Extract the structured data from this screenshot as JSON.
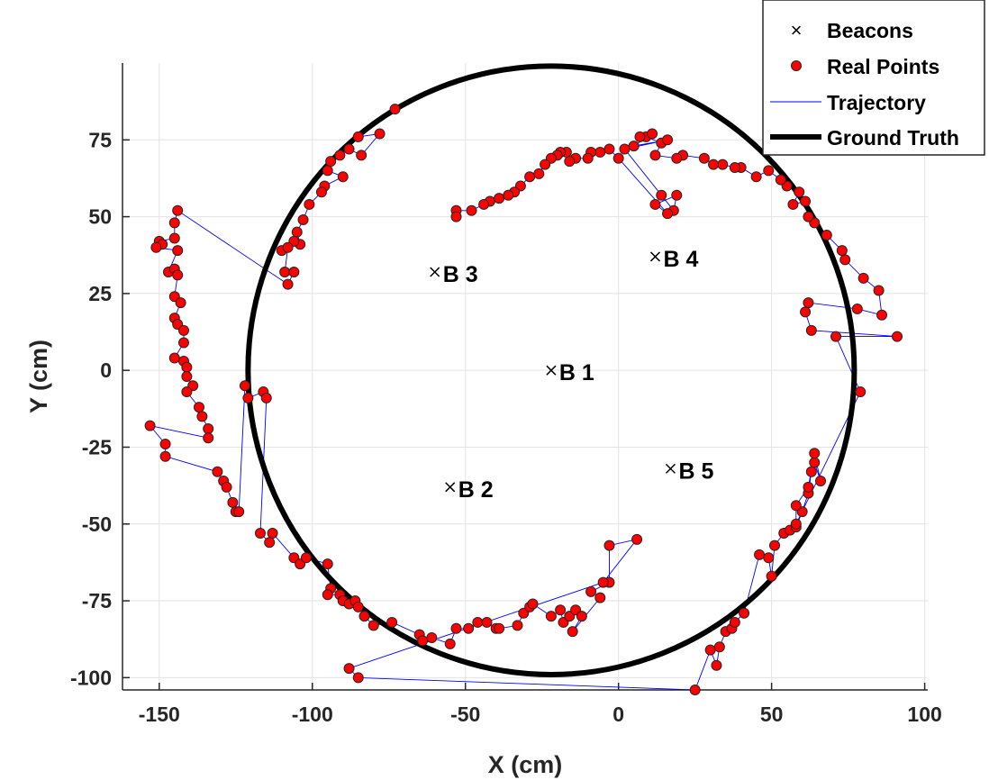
{
  "chart_data": {
    "type": "scatter",
    "xlabel": "X (cm)",
    "ylabel": "Y (cm)",
    "xlim": [
      -162,
      101
    ],
    "ylim": [
      -104,
      100
    ],
    "xticks": [
      -150,
      -100,
      -50,
      0,
      50,
      100
    ],
    "yticks": [
      -100,
      -75,
      -50,
      -25,
      0,
      25,
      50,
      75
    ],
    "grid": true,
    "legend_position": "top-right",
    "legend": [
      {
        "label": "Beacons",
        "marker": "x"
      },
      {
        "label": "Real Points",
        "marker": "circle"
      },
      {
        "label": "Trajectory",
        "marker": "thin-line"
      },
      {
        "label": "Ground Truth",
        "marker": "thick-line"
      }
    ],
    "colors": {
      "beacon": "#000000",
      "real_points_fill": "#ff0000",
      "real_points_edge": "#262626",
      "trajectory": "#0000ff",
      "ground_truth": "#000000",
      "grid": "#e3e3e3"
    },
    "beacons": [
      {
        "name": "B 1",
        "x": -22,
        "y": 0
      },
      {
        "name": "B 2",
        "x": -55,
        "y": -38
      },
      {
        "name": "B 3",
        "x": -60,
        "y": 32
      },
      {
        "name": "B 4",
        "x": 12,
        "y": 37
      },
      {
        "name": "B 5",
        "x": 17,
        "y": -32
      }
    ],
    "ground_truth": {
      "cx": -22,
      "cy": 0,
      "rx": 99,
      "ry": 99
    },
    "real_points": [
      [
        -73,
        85
      ],
      [
        -85,
        76
      ],
      [
        -78,
        77
      ],
      [
        -84,
        70
      ],
      [
        -88,
        72
      ],
      [
        -91,
        70
      ],
      [
        -94,
        68
      ],
      [
        -95,
        65
      ],
      [
        -90,
        63
      ],
      [
        -96,
        60
      ],
      [
        -97,
        58
      ],
      [
        -101,
        54
      ],
      [
        -103,
        49
      ],
      [
        -105,
        45
      ],
      [
        -104,
        41
      ],
      [
        -106,
        42
      ],
      [
        -110,
        39
      ],
      [
        -108,
        40
      ],
      [
        -109,
        32
      ],
      [
        -106,
        32
      ],
      [
        -108,
        28
      ],
      [
        -144,
        52
      ],
      [
        -145,
        48
      ],
      [
        -145,
        43
      ],
      [
        -150,
        42
      ],
      [
        -149,
        41
      ],
      [
        -151,
        40
      ],
      [
        -144,
        39
      ],
      [
        -147,
        32
      ],
      [
        -145,
        33
      ],
      [
        -144,
        31
      ],
      [
        -145,
        24
      ],
      [
        -143,
        22
      ],
      [
        -145,
        17
      ],
      [
        -144,
        15
      ],
      [
        -142,
        13
      ],
      [
        -142,
        9
      ],
      [
        -145,
        4
      ],
      [
        -142,
        3
      ],
      [
        -141,
        1
      ],
      [
        -141,
        -2
      ],
      [
        -139,
        -5
      ],
      [
        -141,
        -7
      ],
      [
        -137,
        -12
      ],
      [
        -136,
        -15
      ],
      [
        -134,
        -19
      ],
      [
        -134,
        -22
      ],
      [
        -153,
        -18
      ],
      [
        -148,
        -24
      ],
      [
        -148,
        -28
      ],
      [
        -131,
        -33
      ],
      [
        -129,
        -36
      ],
      [
        -128,
        -38
      ],
      [
        -126,
        -43
      ],
      [
        -125,
        -46
      ],
      [
        -124,
        -46
      ],
      [
        -122,
        -5
      ],
      [
        -121,
        -9
      ],
      [
        -116,
        -7
      ],
      [
        -115,
        -9
      ],
      [
        -117,
        -53
      ],
      [
        -114,
        -56
      ],
      [
        -113,
        -53
      ],
      [
        -106,
        -61
      ],
      [
        -104,
        -63
      ],
      [
        -102,
        -61
      ],
      [
        -95,
        -63
      ],
      [
        -94,
        -71
      ],
      [
        -95,
        -73
      ],
      [
        -91,
        -73
      ],
      [
        -90,
        -75
      ],
      [
        -88,
        -76
      ],
      [
        -86,
        -75
      ],
      [
        -85,
        -77
      ],
      [
        -83,
        -80
      ],
      [
        -80,
        -83
      ],
      [
        -74,
        -82
      ],
      [
        -65,
        -86
      ],
      [
        -64,
        -88
      ],
      [
        -61,
        -87
      ],
      [
        -55,
        -89
      ],
      [
        -53,
        -84
      ],
      [
        -49,
        -84
      ],
      [
        -46,
        -82
      ],
      [
        -43,
        -82
      ],
      [
        -40,
        -84
      ],
      [
        -39,
        -84
      ],
      [
        -33,
        -83
      ],
      [
        -31,
        -79
      ],
      [
        -29,
        -77
      ],
      [
        -28,
        -76
      ],
      [
        -22,
        -80
      ],
      [
        -19,
        -78
      ],
      [
        -18,
        -82
      ],
      [
        -16,
        -80
      ],
      [
        -14,
        -78
      ],
      [
        -12,
        -80
      ],
      [
        -15,
        -85
      ],
      [
        -6,
        -74
      ],
      [
        -9,
        -72
      ],
      [
        -3,
        -69
      ],
      [
        -3,
        -57
      ],
      [
        6,
        -55
      ],
      [
        -5,
        -69
      ],
      [
        -88,
        -97
      ],
      [
        -85,
        -100
      ],
      [
        25,
        -104
      ],
      [
        30,
        -91
      ],
      [
        32,
        -96
      ],
      [
        33,
        -90
      ],
      [
        35,
        -85
      ],
      [
        37,
        -84
      ],
      [
        38,
        -82
      ],
      [
        41,
        -79
      ],
      [
        46,
        -60
      ],
      [
        49,
        -61
      ],
      [
        50,
        -67
      ],
      [
        51,
        -57
      ],
      [
        54,
        -53
      ],
      [
        56,
        -52
      ],
      [
        58,
        -51
      ],
      [
        60,
        -46
      ],
      [
        62,
        -40
      ],
      [
        63,
        -33
      ],
      [
        64,
        -30
      ],
      [
        66,
        -36
      ],
      [
        64,
        -27
      ],
      [
        62,
        -38
      ],
      [
        58,
        -44
      ],
      [
        58,
        -50
      ],
      [
        79,
        -7
      ],
      [
        71,
        11
      ],
      [
        91,
        11
      ],
      [
        63,
        13
      ],
      [
        61,
        19
      ],
      [
        62,
        22
      ],
      [
        78,
        20
      ],
      [
        86,
        18
      ],
      [
        85,
        26
      ],
      [
        80,
        30
      ],
      [
        74,
        36
      ],
      [
        73,
        39
      ],
      [
        68,
        44
      ],
      [
        64,
        48
      ],
      [
        62,
        50
      ],
      [
        61,
        55
      ],
      [
        57,
        54
      ],
      [
        59,
        58
      ],
      [
        55,
        60
      ],
      [
        53,
        62
      ],
      [
        49,
        65
      ],
      [
        45,
        63
      ],
      [
        40,
        66
      ],
      [
        38,
        66
      ],
      [
        34,
        67
      ],
      [
        31,
        67
      ],
      [
        28,
        69
      ],
      [
        21,
        70
      ],
      [
        19,
        69
      ],
      [
        12,
        70
      ],
      [
        14,
        74
      ],
      [
        9,
        76
      ],
      [
        7,
        76
      ],
      [
        11,
        77
      ],
      [
        5,
        73
      ],
      [
        16,
        75
      ],
      [
        2,
        72
      ],
      [
        14,
        57
      ],
      [
        18,
        52
      ],
      [
        19,
        57
      ],
      [
        12,
        54
      ],
      [
        16,
        51
      ],
      [
        0,
        69
      ],
      [
        -3,
        72
      ],
      [
        -6,
        71
      ],
      [
        -9,
        71
      ],
      [
        -10,
        69
      ],
      [
        -14,
        69
      ],
      [
        -16,
        68
      ],
      [
        -17,
        71
      ],
      [
        -19,
        71
      ],
      [
        -20,
        70
      ],
      [
        -22,
        69
      ],
      [
        -24,
        67
      ],
      [
        -26,
        64
      ],
      [
        -29,
        63
      ],
      [
        -32,
        60
      ],
      [
        -34,
        58
      ],
      [
        -36,
        57
      ],
      [
        -39,
        56
      ],
      [
        -42,
        55
      ],
      [
        -44,
        54
      ],
      [
        -48,
        52
      ],
      [
        -53,
        52
      ],
      [
        -53,
        50
      ]
    ],
    "trajectory_order": "sequential"
  }
}
